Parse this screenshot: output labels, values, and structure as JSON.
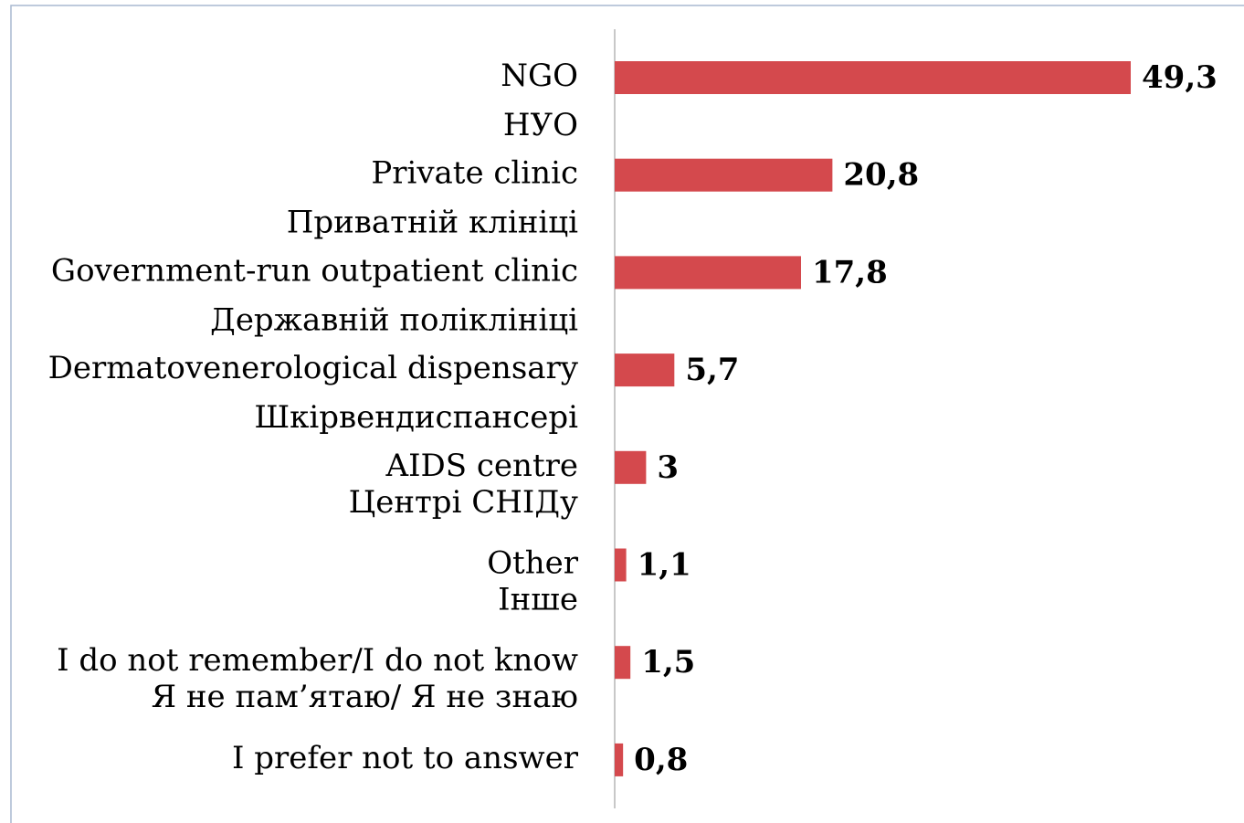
{
  "chart_data": {
    "type": "barh",
    "categories": [
      [
        "NGO",
        "НУО"
      ],
      [
        "Private clinic",
        "Приватній клініці"
      ],
      [
        "Government-run outpatient clinic",
        "Державній поліклініці"
      ],
      [
        "Dermatovenerological dispensary",
        "Шкірвендиспансері"
      ],
      [
        "AIDS centre",
        "Центрі СНІДу"
      ],
      [
        "Other",
        "Інше"
      ],
      [
        "I do not remember/I do not know",
        "Я не пам’ятаю/ Я не знаю"
      ],
      [
        "I prefer not to answer"
      ]
    ],
    "values": [
      49.3,
      20.8,
      17.8,
      5.7,
      3,
      1.1,
      1.5,
      0.8
    ],
    "value_labels": [
      "49,3",
      "20,8",
      "17,8",
      "5,7",
      "3",
      "1,1",
      "1,5",
      "0,8"
    ],
    "color": "#d4494d"
  }
}
